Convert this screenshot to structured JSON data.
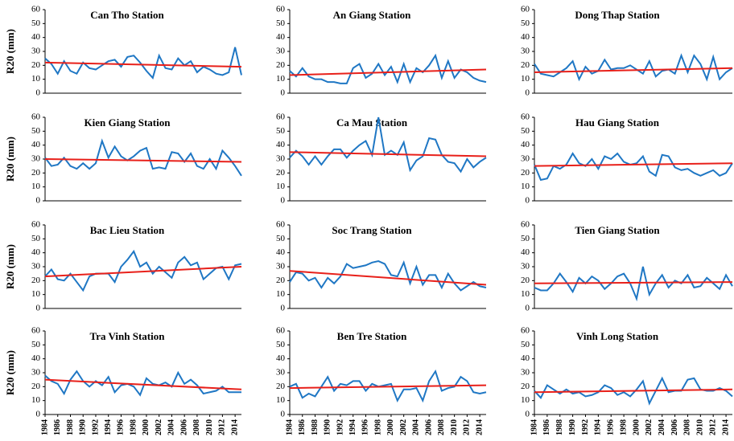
{
  "chart_data": [
    {
      "type": "line",
      "title": "Can Tho Station",
      "ylabel": "R20 (mm)",
      "color": "#1f77c4",
      "trend_color": "#e8201a",
      "x": [
        1984,
        1985,
        1986,
        1987,
        1988,
        1989,
        1990,
        1991,
        1992,
        1993,
        1994,
        1995,
        1996,
        1997,
        1998,
        1999,
        2000,
        2001,
        2002,
        2003,
        2004,
        2005,
        2006,
        2007,
        2008,
        2009,
        2010,
        2011,
        2012,
        2013,
        2014,
        2015
      ],
      "values": [
        25,
        21,
        14,
        23,
        16,
        14,
        22,
        18,
        17,
        20,
        23,
        24,
        19,
        26,
        27,
        22,
        16,
        11,
        27,
        18,
        17,
        25,
        20,
        23,
        15,
        19,
        17,
        14,
        13,
        15,
        33,
        13
      ],
      "trend": [
        22,
        19
      ],
      "xlim": [
        1984,
        2015
      ],
      "ylim": [
        0,
        60
      ],
      "yticks": [
        0,
        10,
        20,
        30,
        40,
        50,
        60
      ]
    },
    {
      "type": "line",
      "title": "An Giang Station",
      "color": "#1f77c4",
      "trend_color": "#e8201a",
      "x": [
        1984,
        1985,
        1986,
        1987,
        1988,
        1989,
        1990,
        1991,
        1992,
        1993,
        1994,
        1995,
        1996,
        1997,
        1998,
        1999,
        2000,
        2001,
        2002,
        2003,
        2004,
        2005,
        2006,
        2007,
        2008,
        2009,
        2010,
        2011,
        2012,
        2013,
        2014,
        2015
      ],
      "values": [
        16,
        12,
        18,
        12,
        10,
        10,
        8,
        8,
        7,
        7,
        18,
        21,
        11,
        14,
        21,
        13,
        19,
        8,
        21,
        8,
        18,
        15,
        20,
        27,
        11,
        23,
        11,
        17,
        15,
        11,
        9,
        8
      ],
      "trend": [
        13,
        17
      ],
      "xlim": [
        1984,
        2015
      ],
      "ylim": [
        0,
        60
      ],
      "yticks": [
        0,
        10,
        20,
        30,
        40,
        50,
        60
      ]
    },
    {
      "type": "line",
      "title": "Dong Thap Station",
      "color": "#1f77c4",
      "trend_color": "#e8201a",
      "x": [
        1984,
        1985,
        1986,
        1987,
        1988,
        1989,
        1990,
        1991,
        1992,
        1993,
        1994,
        1995,
        1996,
        1997,
        1998,
        1999,
        2000,
        2001,
        2002,
        2003,
        2004,
        2005,
        2006,
        2007,
        2008,
        2009,
        2010,
        2011,
        2012,
        2013,
        2014,
        2015
      ],
      "values": [
        21,
        14,
        13,
        12,
        15,
        18,
        23,
        10,
        19,
        14,
        16,
        24,
        17,
        18,
        18,
        20,
        17,
        14,
        23,
        12,
        16,
        17,
        14,
        27,
        15,
        27,
        21,
        10,
        26,
        10,
        15,
        18
      ],
      "trend": [
        15,
        18
      ],
      "xlim": [
        1984,
        2015
      ],
      "ylim": [
        0,
        60
      ],
      "yticks": [
        0,
        10,
        20,
        30,
        40,
        50,
        60
      ]
    },
    {
      "type": "line",
      "title": "Kien Giang Station",
      "ylabel": "R20 (mm)",
      "color": "#1f77c4",
      "trend_color": "#e8201a",
      "x": [
        1984,
        1985,
        1986,
        1987,
        1988,
        1989,
        1990,
        1991,
        1992,
        1993,
        1994,
        1995,
        1996,
        1997,
        1998,
        1999,
        2000,
        2001,
        2002,
        2003,
        2004,
        2005,
        2006,
        2007,
        2008,
        2009,
        2010,
        2011,
        2012,
        2013,
        2014,
        2015
      ],
      "values": [
        31,
        25,
        26,
        31,
        25,
        23,
        27,
        23,
        27,
        43,
        31,
        39,
        32,
        29,
        32,
        36,
        38,
        23,
        24,
        23,
        35,
        34,
        28,
        34,
        25,
        23,
        30,
        23,
        36,
        31,
        25,
        18
      ],
      "trend": [
        30,
        28
      ],
      "xlim": [
        1984,
        2015
      ],
      "ylim": [
        0,
        60
      ],
      "yticks": [
        0,
        10,
        20,
        30,
        40,
        50,
        60
      ]
    },
    {
      "type": "line",
      "title": "Ca Mau Station",
      "color": "#1f77c4",
      "trend_color": "#e8201a",
      "x": [
        1984,
        1985,
        1986,
        1987,
        1988,
        1989,
        1990,
        1991,
        1992,
        1993,
        1994,
        1995,
        1996,
        1997,
        1998,
        1999,
        2000,
        2001,
        2002,
        2003,
        2004,
        2005,
        2006,
        2007,
        2008,
        2009,
        2010,
        2011,
        2012,
        2013,
        2014,
        2015
      ],
      "values": [
        31,
        36,
        32,
        26,
        32,
        26,
        32,
        37,
        37,
        31,
        36,
        40,
        43,
        33,
        60,
        33,
        36,
        33,
        42,
        22,
        29,
        32,
        45,
        44,
        33,
        28,
        27,
        21,
        30,
        24,
        28,
        31
      ],
      "trend": [
        35,
        32
      ],
      "xlim": [
        1984,
        2015
      ],
      "ylim": [
        0,
        60
      ],
      "yticks": [
        0,
        10,
        20,
        30,
        40,
        50,
        60
      ]
    },
    {
      "type": "line",
      "title": "Hau Giang Station",
      "color": "#1f77c4",
      "trend_color": "#e8201a",
      "x": [
        1984,
        1985,
        1986,
        1987,
        1988,
        1989,
        1990,
        1991,
        1992,
        1993,
        1994,
        1995,
        1996,
        1997,
        1998,
        1999,
        2000,
        2001,
        2002,
        2003,
        2004,
        2005,
        2006,
        2007,
        2008,
        2009,
        2010,
        2011,
        2012,
        2013,
        2014,
        2015
      ],
      "values": [
        26,
        15,
        16,
        25,
        23,
        26,
        34,
        27,
        25,
        30,
        23,
        32,
        30,
        34,
        28,
        26,
        27,
        32,
        21,
        18,
        33,
        32,
        24,
        22,
        23,
        20,
        18,
        20,
        22,
        18,
        20,
        27
      ],
      "trend": [
        25,
        27
      ],
      "xlim": [
        1984,
        2015
      ],
      "ylim": [
        0,
        60
      ],
      "yticks": [
        0,
        10,
        20,
        30,
        40,
        50,
        60
      ]
    },
    {
      "type": "line",
      "title": "Bac Lieu Station",
      "ylabel": "R20 (mm)",
      "color": "#1f77c4",
      "trend_color": "#e8201a",
      "x": [
        1984,
        1985,
        1986,
        1987,
        1988,
        1989,
        1990,
        1991,
        1992,
        1993,
        1994,
        1995,
        1996,
        1997,
        1998,
        1999,
        2000,
        2001,
        2002,
        2003,
        2004,
        2005,
        2006,
        2007,
        2008,
        2009,
        2010,
        2011,
        2012,
        2013,
        2014,
        2015
      ],
      "values": [
        23,
        28,
        21,
        20,
        25,
        19,
        13,
        23,
        25,
        25,
        25,
        19,
        30,
        35,
        41,
        30,
        33,
        25,
        30,
        26,
        22,
        33,
        37,
        31,
        33,
        21,
        25,
        29,
        30,
        21,
        31,
        32
      ],
      "trend": [
        23,
        30
      ],
      "xlim": [
        1984,
        2015
      ],
      "ylim": [
        0,
        60
      ],
      "yticks": [
        0,
        10,
        20,
        30,
        40,
        50,
        60
      ]
    },
    {
      "type": "line",
      "title": "Soc Trang Station",
      "color": "#1f77c4",
      "trend_color": "#e8201a",
      "x": [
        1984,
        1985,
        1986,
        1987,
        1988,
        1989,
        1990,
        1991,
        1992,
        1993,
        1994,
        1995,
        1996,
        1997,
        1998,
        1999,
        2000,
        2001,
        2002,
        2003,
        2004,
        2005,
        2006,
        2007,
        2008,
        2009,
        2010,
        2011,
        2012,
        2013,
        2014,
        2015
      ],
      "values": [
        19,
        26,
        25,
        20,
        22,
        15,
        22,
        18,
        23,
        32,
        29,
        30,
        31,
        33,
        34,
        32,
        24,
        23,
        33,
        18,
        30,
        17,
        24,
        24,
        15,
        25,
        18,
        13,
        16,
        19,
        16,
        15
      ],
      "trend": [
        27,
        17
      ],
      "xlim": [
        1984,
        2015
      ],
      "ylim": [
        0,
        60
      ],
      "yticks": [
        0,
        10,
        20,
        30,
        40,
        50,
        60
      ]
    },
    {
      "type": "line",
      "title": "Tien Giang Station",
      "color": "#1f77c4",
      "trend_color": "#e8201a",
      "x": [
        1984,
        1985,
        1986,
        1987,
        1988,
        1989,
        1990,
        1991,
        1992,
        1993,
        1994,
        1995,
        1996,
        1997,
        1998,
        1999,
        2000,
        2001,
        2002,
        2003,
        2004,
        2005,
        2006,
        2007,
        2008,
        2009,
        2010,
        2011,
        2012,
        2013,
        2014,
        2015
      ],
      "values": [
        15,
        13,
        13,
        18,
        25,
        19,
        12,
        22,
        18,
        23,
        20,
        14,
        18,
        23,
        25,
        18,
        7,
        30,
        10,
        18,
        24,
        15,
        20,
        18,
        24,
        15,
        16,
        22,
        18,
        14,
        24,
        16
      ],
      "trend": [
        18,
        19
      ],
      "xlim": [
        1984,
        2015
      ],
      "ylim": [
        0,
        60
      ],
      "yticks": [
        0,
        10,
        20,
        30,
        40,
        50,
        60
      ]
    },
    {
      "type": "line",
      "title": "Tra Vinh Station",
      "ylabel": "R20 (mm)",
      "color": "#1f77c4",
      "trend_color": "#e8201a",
      "x": [
        1984,
        1985,
        1986,
        1987,
        1988,
        1989,
        1990,
        1991,
        1992,
        1993,
        1994,
        1995,
        1996,
        1997,
        1998,
        1999,
        2000,
        2001,
        2002,
        2003,
        2004,
        2005,
        2006,
        2007,
        2008,
        2009,
        2010,
        2011,
        2012,
        2013,
        2014,
        2015
      ],
      "values": [
        28,
        24,
        22,
        15,
        25,
        31,
        24,
        20,
        24,
        21,
        27,
        16,
        21,
        22,
        20,
        14,
        26,
        22,
        21,
        23,
        20,
        30,
        22,
        25,
        21,
        15,
        16,
        17,
        20,
        16,
        16,
        16
      ],
      "trend": [
        25,
        18
      ],
      "xlim": [
        1984,
        2015
      ],
      "ylim": [
        0,
        60
      ],
      "yticks": [
        0,
        10,
        20,
        30,
        40,
        50,
        60
      ],
      "xticks": [
        1984,
        1986,
        1988,
        1990,
        1992,
        1994,
        1996,
        1998,
        2000,
        2002,
        2004,
        2006,
        2008,
        2010,
        2012,
        2014
      ]
    },
    {
      "type": "line",
      "title": "Ben Tre Station",
      "color": "#1f77c4",
      "trend_color": "#e8201a",
      "x": [
        1984,
        1985,
        1986,
        1987,
        1988,
        1989,
        1990,
        1991,
        1992,
        1993,
        1994,
        1995,
        1996,
        1997,
        1998,
        1999,
        2000,
        2001,
        2002,
        2003,
        2004,
        2005,
        2006,
        2007,
        2008,
        2009,
        2010,
        2011,
        2012,
        2013,
        2014,
        2015
      ],
      "values": [
        20,
        22,
        12,
        15,
        13,
        20,
        27,
        17,
        22,
        21,
        24,
        24,
        17,
        22,
        20,
        21,
        22,
        10,
        18,
        18,
        19,
        10,
        24,
        31,
        17,
        19,
        20,
        27,
        24,
        16,
        15,
        16
      ],
      "trend": [
        19,
        21
      ],
      "xlim": [
        1984,
        2015
      ],
      "ylim": [
        0,
        60
      ],
      "yticks": [
        0,
        10,
        20,
        30,
        40,
        50,
        60
      ],
      "xticks": [
        1984,
        1986,
        1988,
        1990,
        1992,
        1994,
        1996,
        1998,
        2000,
        2002,
        2004,
        2006,
        2008,
        2010,
        2012,
        2014
      ]
    },
    {
      "type": "line",
      "title": "Vinh Long Station",
      "color": "#1f77c4",
      "trend_color": "#e8201a",
      "x": [
        1984,
        1985,
        1986,
        1987,
        1988,
        1989,
        1990,
        1991,
        1992,
        1993,
        1994,
        1995,
        1996,
        1997,
        1998,
        1999,
        2000,
        2001,
        2002,
        2003,
        2004,
        2005,
        2006,
        2007,
        2008,
        2009,
        2010,
        2011,
        2012,
        2013,
        2014,
        2015
      ],
      "values": [
        17,
        12,
        21,
        18,
        15,
        18,
        15,
        16,
        13,
        14,
        16,
        21,
        19,
        14,
        16,
        13,
        18,
        24,
        8,
        17,
        26,
        16,
        17,
        17,
        25,
        26,
        18,
        17,
        17,
        19,
        17,
        13
      ],
      "trend": [
        16,
        18
      ],
      "xlim": [
        1984,
        2015
      ],
      "ylim": [
        0,
        60
      ],
      "yticks": [
        0,
        10,
        20,
        30,
        40,
        50,
        60
      ],
      "xticks": [
        1984,
        1986,
        1988,
        1990,
        1992,
        1994,
        1996,
        1998,
        2000,
        2002,
        2004,
        2006,
        2008,
        2010,
        2012,
        2014
      ]
    }
  ]
}
